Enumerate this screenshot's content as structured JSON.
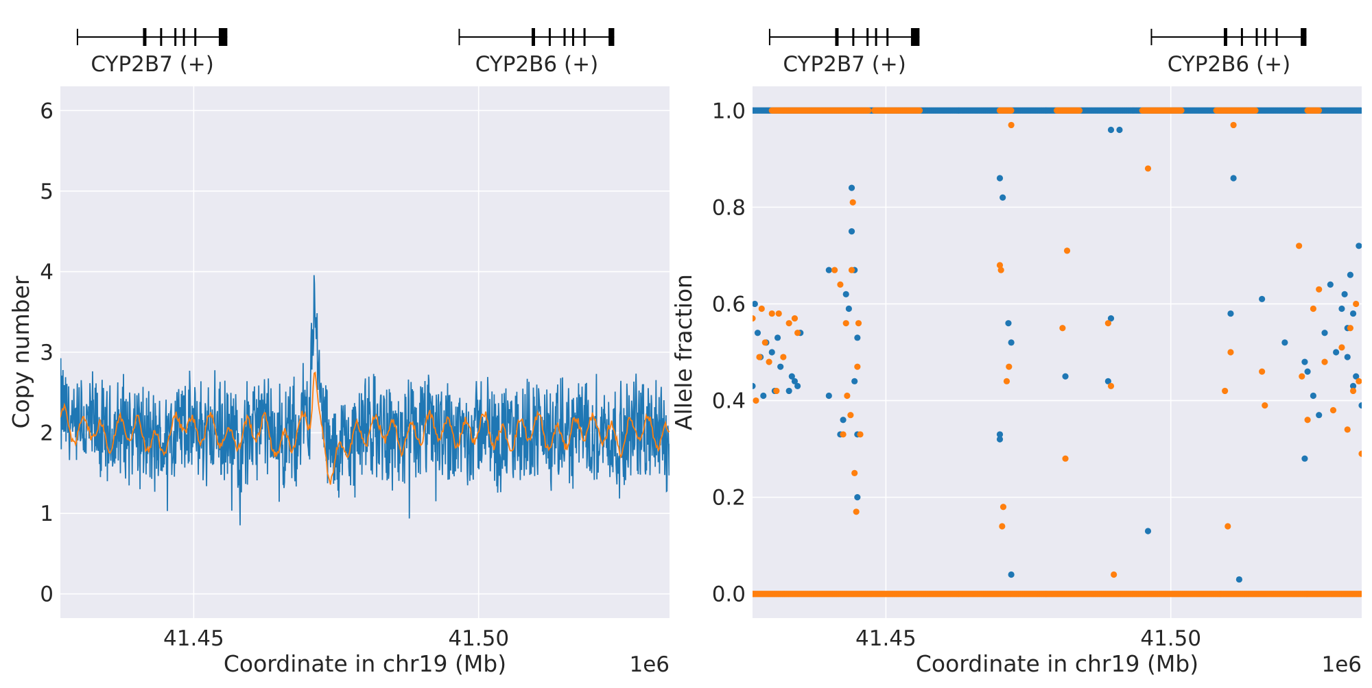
{
  "colors": {
    "background": "#eaeaf2",
    "grid": "#ffffff",
    "series_blue": "#1f77b4",
    "series_orange": "#ff7f0e",
    "gene": "#000000"
  },
  "chart_data": [
    {
      "type": "line",
      "xlabel": "Coordinate in chr19 (Mb)",
      "ylabel": "Copy number",
      "x_offset_label": "1e6",
      "xlim": [
        41.4266,
        41.5335
      ],
      "ylim": [
        -0.3,
        6.3
      ],
      "xticks": [
        41.45,
        41.5
      ],
      "xtick_labels": [
        "41.45",
        "41.50"
      ],
      "yticks": [
        0,
        1,
        2,
        3,
        4,
        5,
        6
      ],
      "ytick_labels": [
        "0",
        "1",
        "2",
        "3",
        "4",
        "5",
        "6"
      ],
      "grid": true,
      "genes": [
        {
          "label": "CYP2B7 (+)",
          "start": 41.4296,
          "end": 41.4559,
          "exons": [
            41.4411,
            41.4441,
            41.4466,
            41.4481,
            41.4501,
            41.4544
          ]
        },
        {
          "label": "CYP2B6 (+)",
          "start": 41.4966,
          "end": 41.5238,
          "exons": [
            41.5093,
            41.5123,
            41.5149,
            41.5164,
            41.5184,
            41.5228
          ]
        }
      ],
      "series": [
        {
          "color": "#1f77b4",
          "style": "raw",
          "x": [
            41.4266,
            41.429,
            41.432,
            41.435,
            41.438,
            41.441,
            41.444,
            41.446,
            41.448,
            41.45,
            41.453,
            41.456,
            41.459,
            41.462,
            41.465,
            41.468,
            41.4705,
            41.4712,
            41.472,
            41.474,
            41.477,
            41.48,
            41.483,
            41.486,
            41.489,
            41.492,
            41.495,
            41.498,
            41.501,
            41.504,
            41.507,
            41.51,
            41.513,
            41.516,
            41.519,
            41.522,
            41.525,
            41.528,
            41.531,
            41.5335
          ],
          "values": [
            2.3,
            2.0,
            2.1,
            1.9,
            2.1,
            2.0,
            1.8,
            2.0,
            2.1,
            2.0,
            2.1,
            1.9,
            2.0,
            2.1,
            1.9,
            2.0,
            2.4,
            3.8,
            2.5,
            1.7,
            1.9,
            2.0,
            2.1,
            1.9,
            2.0,
            2.1,
            2.0,
            2.0,
            2.1,
            1.9,
            2.0,
            2.1,
            1.9,
            2.0,
            2.1,
            2.0,
            1.9,
            2.1,
            2.0,
            1.9
          ],
          "noise_amplitude": 0.5
        },
        {
          "color": "#ff7f0e",
          "style": "smoothed",
          "x": [
            41.4266,
            41.429,
            41.432,
            41.435,
            41.438,
            41.441,
            41.444,
            41.446,
            41.448,
            41.45,
            41.453,
            41.456,
            41.459,
            41.462,
            41.465,
            41.468,
            41.4705,
            41.4712,
            41.472,
            41.474,
            41.477,
            41.48,
            41.483,
            41.486,
            41.489,
            41.492,
            41.495,
            41.498,
            41.501,
            41.504,
            41.507,
            41.51,
            41.513,
            41.516,
            41.519,
            41.522,
            41.525,
            41.528,
            41.531,
            41.5335
          ],
          "values": [
            2.2,
            2.0,
            2.1,
            1.9,
            2.1,
            2.0,
            1.8,
            2.0,
            2.2,
            2.0,
            2.1,
            1.9,
            2.0,
            2.1,
            1.8,
            2.0,
            2.2,
            2.9,
            2.1,
            1.5,
            1.9,
            2.0,
            2.1,
            1.9,
            2.0,
            2.1,
            2.0,
            2.0,
            2.1,
            1.9,
            2.0,
            2.1,
            1.9,
            2.0,
            2.1,
            2.0,
            1.9,
            2.1,
            2.0,
            1.9
          ],
          "noise_amplitude": 0.1
        }
      ]
    },
    {
      "type": "scatter",
      "xlabel": "Coordinate in chr19 (Mb)",
      "ylabel": "Allele fraction",
      "x_offset_label": "1e6",
      "xlim": [
        41.4266,
        41.5335
      ],
      "ylim": [
        -0.05,
        1.05
      ],
      "xticks": [
        41.45,
        41.5
      ],
      "xtick_labels": [
        "41.45",
        "41.50"
      ],
      "yticks": [
        0.0,
        0.2,
        0.4,
        0.6,
        0.8,
        1.0
      ],
      "ytick_labels": [
        "0.0",
        "0.2",
        "0.4",
        "0.6",
        "0.8",
        "1.0"
      ],
      "grid": true,
      "genes": [
        {
          "label": "CYP2B7 (+)",
          "start": 41.4296,
          "end": 41.4559,
          "exons": [
            41.4411,
            41.4441,
            41.4466,
            41.4481,
            41.4501,
            41.4544
          ]
        },
        {
          "label": "CYP2B6 (+)",
          "start": 41.4966,
          "end": 41.5238,
          "exons": [
            41.5093,
            41.5123,
            41.5149,
            41.5164,
            41.5184,
            41.5228
          ]
        }
      ],
      "series": [
        {
          "color": "#1f77b4",
          "x": [
            41.4266,
            41.427,
            41.4275,
            41.428,
            41.4285,
            41.429,
            41.43,
            41.4305,
            41.431,
            41.4315,
            41.433,
            41.4335,
            41.434,
            41.4345,
            41.435,
            41.44,
            41.44,
            41.442,
            41.4425,
            41.443,
            41.4435,
            41.444,
            41.444,
            41.4445,
            41.4445,
            41.445,
            41.445,
            41.445,
            41.47,
            41.4705,
            41.47,
            41.47,
            41.4715,
            41.472,
            41.472,
            41.4815,
            41.489,
            41.4895,
            41.4895,
            41.496,
            41.491,
            41.5105,
            41.511,
            41.512,
            41.516,
            41.52,
            41.5235,
            41.5235,
            41.524,
            41.525,
            41.526,
            41.527,
            41.528,
            41.529,
            41.53,
            41.5305,
            41.531,
            41.5315,
            41.532,
            41.5325,
            41.533,
            41.5335,
            41.532,
            41.531
          ],
          "values": [
            0.43,
            0.6,
            0.54,
            0.49,
            0.41,
            0.52,
            0.5,
            0.42,
            0.53,
            0.47,
            0.42,
            0.45,
            0.44,
            0.43,
            0.54,
            0.67,
            0.41,
            0.33,
            0.36,
            0.62,
            0.59,
            0.84,
            0.75,
            0.67,
            0.44,
            0.53,
            0.2,
            0.33,
            0.86,
            0.82,
            0.33,
            0.32,
            0.56,
            0.52,
            0.04,
            0.45,
            0.44,
            0.57,
            0.96,
            0.13,
            0.96,
            0.58,
            0.86,
            0.03,
            0.61,
            0.52,
            0.28,
            0.48,
            0.46,
            0.41,
            0.37,
            0.54,
            0.64,
            0.5,
            0.59,
            0.62,
            0.55,
            0.66,
            0.58,
            0.45,
            0.72,
            0.39,
            0.43,
            0.49
          ],
          "band_at": 1.0,
          "band_from": 41.4266,
          "band_to": 41.5335
        },
        {
          "color": "#ff7f0e",
          "x": [
            41.4266,
            41.4272,
            41.4278,
            41.4282,
            41.4288,
            41.4295,
            41.43,
            41.4308,
            41.4312,
            41.432,
            41.433,
            41.434,
            41.4345,
            41.441,
            41.442,
            41.4425,
            41.443,
            41.4432,
            41.4438,
            41.444,
            41.4442,
            41.4445,
            41.4448,
            41.445,
            41.4452,
            41.4455,
            41.47,
            41.4702,
            41.4704,
            41.4706,
            41.4712,
            41.4716,
            41.472,
            41.481,
            41.4815,
            41.4818,
            41.489,
            41.4895,
            41.49,
            41.496,
            41.5095,
            41.51,
            41.5105,
            41.511,
            41.516,
            41.5165,
            41.5225,
            41.523,
            41.524,
            41.525,
            41.526,
            41.527,
            41.5285,
            41.53,
            41.531,
            41.532,
            41.5325,
            41.533,
            41.5335,
            41.5315
          ],
          "values": [
            0.57,
            0.4,
            0.49,
            0.59,
            0.52,
            0.48,
            0.58,
            0.42,
            0.58,
            0.49,
            0.56,
            0.57,
            0.54,
            0.67,
            0.64,
            0.33,
            0.56,
            0.41,
            0.37,
            0.67,
            0.81,
            0.25,
            0.17,
            0.47,
            0.56,
            0.33,
            0.68,
            0.67,
            0.14,
            0.18,
            0.44,
            0.47,
            0.97,
            0.55,
            0.28,
            0.71,
            0.56,
            0.43,
            0.04,
            0.88,
            0.42,
            0.14,
            0.5,
            0.97,
            0.46,
            0.39,
            0.72,
            0.45,
            0.36,
            0.59,
            0.63,
            0.48,
            0.38,
            0.51,
            0.34,
            0.42,
            0.6,
            0.44,
            0.29,
            0.55
          ],
          "band_at": 0.0,
          "band_from": 41.4266,
          "band_to": 41.5335,
          "band2_at": 1.0,
          "band2_segments": [
            [
              41.43,
              41.447
            ],
            [
              41.448,
              41.456
            ],
            [
              41.47,
              41.472
            ],
            [
              41.48,
              41.484
            ],
            [
              41.495,
              41.502
            ],
            [
              41.508,
              41.515
            ],
            [
              41.524,
              41.526
            ]
          ]
        }
      ]
    }
  ]
}
